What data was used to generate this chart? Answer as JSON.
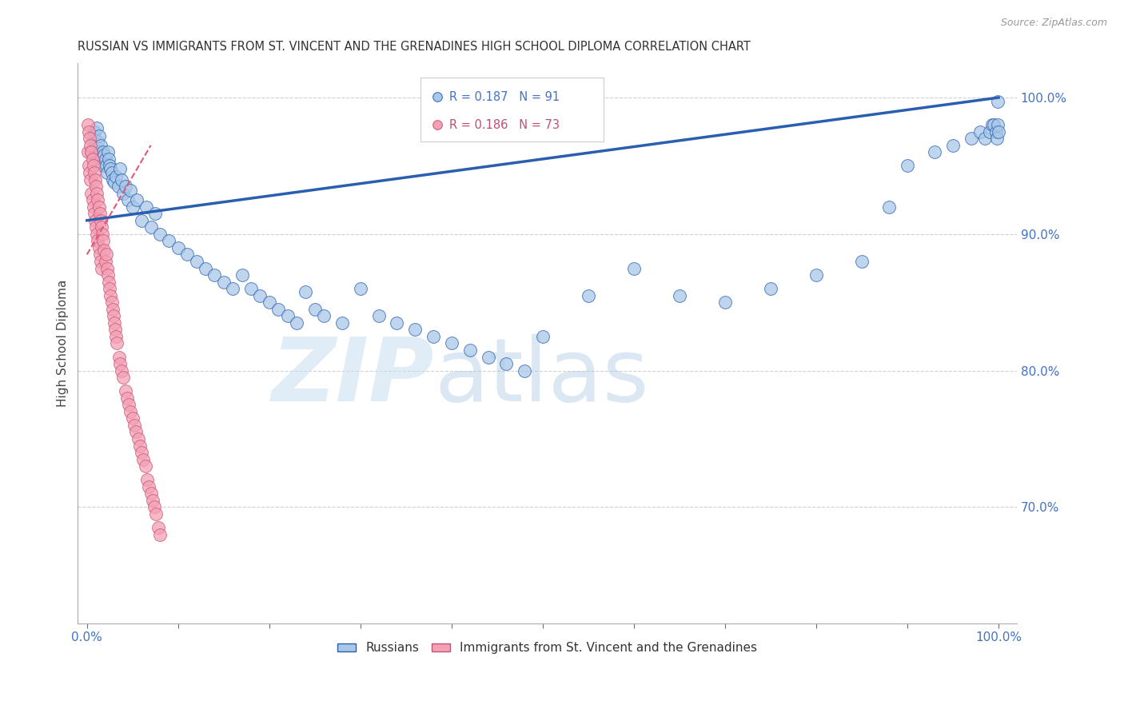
{
  "title": "RUSSIAN VS IMMIGRANTS FROM ST. VINCENT AND THE GRENADINES HIGH SCHOOL DIPLOMA CORRELATION CHART",
  "source": "Source: ZipAtlas.com",
  "ylabel": "High School Diploma",
  "right_ytick_labels": [
    "100.0%",
    "90.0%",
    "80.0%",
    "70.0%"
  ],
  "right_ytick_values": [
    1.0,
    0.9,
    0.8,
    0.7
  ],
  "xtick_edge_labels": [
    "0.0%",
    "100.0%"
  ],
  "xtick_edge_values": [
    0.0,
    1.0
  ],
  "xlim": [
    -0.01,
    1.02
  ],
  "ylim": [
    0.615,
    1.025
  ],
  "blue_color": "#a8c8e8",
  "pink_color": "#f4a0b5",
  "trend_blue_color": "#2a5fb0",
  "trend_pink_color": "#e05878",
  "legend_russians": "Russians",
  "legend_immigrants": "Immigrants from St. Vincent and the Grenadines",
  "blue_trend_x0": 0.0,
  "blue_trend_y0": 0.91,
  "blue_trend_x1": 1.0,
  "blue_trend_y1": 1.0,
  "pink_trend_x0": 0.0,
  "pink_trend_y0": 0.885,
  "pink_trend_x1": 0.07,
  "pink_trend_y1": 0.965,
  "blue_scatter_x": [
    0.005,
    0.007,
    0.008,
    0.009,
    0.01,
    0.011,
    0.012,
    0.013,
    0.014,
    0.015,
    0.016,
    0.017,
    0.018,
    0.019,
    0.02,
    0.021,
    0.022,
    0.023,
    0.024,
    0.025,
    0.026,
    0.027,
    0.028,
    0.03,
    0.032,
    0.034,
    0.036,
    0.038,
    0.04,
    0.042,
    0.045,
    0.048,
    0.05,
    0.055,
    0.06,
    0.065,
    0.07,
    0.075,
    0.08,
    0.09,
    0.1,
    0.11,
    0.12,
    0.13,
    0.14,
    0.15,
    0.16,
    0.17,
    0.18,
    0.19,
    0.2,
    0.21,
    0.22,
    0.23,
    0.24,
    0.25,
    0.26,
    0.28,
    0.3,
    0.32,
    0.34,
    0.36,
    0.38,
    0.4,
    0.42,
    0.44,
    0.46,
    0.48,
    0.5,
    0.55,
    0.6,
    0.65,
    0.7,
    0.75,
    0.8,
    0.85,
    0.88,
    0.9,
    0.93,
    0.95,
    0.97,
    0.98,
    0.985,
    0.99,
    0.993,
    0.995,
    0.997,
    0.998,
    0.999,
    1.0,
    0.999
  ],
  "blue_scatter_y": [
    0.96,
    0.97,
    0.975,
    0.965,
    0.958,
    0.978,
    0.968,
    0.972,
    0.96,
    0.965,
    0.955,
    0.95,
    0.96,
    0.958,
    0.955,
    0.95,
    0.945,
    0.96,
    0.955,
    0.95,
    0.948,
    0.945,
    0.94,
    0.938,
    0.942,
    0.935,
    0.948,
    0.94,
    0.93,
    0.935,
    0.925,
    0.932,
    0.92,
    0.925,
    0.91,
    0.92,
    0.905,
    0.915,
    0.9,
    0.895,
    0.89,
    0.885,
    0.88,
    0.875,
    0.87,
    0.865,
    0.86,
    0.87,
    0.86,
    0.855,
    0.85,
    0.845,
    0.84,
    0.835,
    0.858,
    0.845,
    0.84,
    0.835,
    0.86,
    0.84,
    0.835,
    0.83,
    0.825,
    0.82,
    0.815,
    0.81,
    0.805,
    0.8,
    0.825,
    0.855,
    0.875,
    0.855,
    0.85,
    0.86,
    0.87,
    0.88,
    0.92,
    0.95,
    0.96,
    0.965,
    0.97,
    0.975,
    0.97,
    0.975,
    0.98,
    0.98,
    0.975,
    0.97,
    0.98,
    0.975,
    0.997
  ],
  "pink_scatter_x": [
    0.001,
    0.001,
    0.002,
    0.002,
    0.003,
    0.003,
    0.004,
    0.004,
    0.005,
    0.005,
    0.006,
    0.006,
    0.007,
    0.007,
    0.008,
    0.008,
    0.009,
    0.009,
    0.01,
    0.01,
    0.011,
    0.011,
    0.012,
    0.012,
    0.013,
    0.013,
    0.014,
    0.014,
    0.015,
    0.015,
    0.016,
    0.016,
    0.017,
    0.018,
    0.019,
    0.02,
    0.021,
    0.022,
    0.023,
    0.024,
    0.025,
    0.026,
    0.027,
    0.028,
    0.029,
    0.03,
    0.031,
    0.032,
    0.033,
    0.035,
    0.036,
    0.038,
    0.04,
    0.042,
    0.044,
    0.046,
    0.048,
    0.05,
    0.052,
    0.054,
    0.056,
    0.058,
    0.06,
    0.062,
    0.064,
    0.066,
    0.068,
    0.07,
    0.072,
    0.074,
    0.076,
    0.078,
    0.08
  ],
  "pink_scatter_y": [
    0.98,
    0.96,
    0.975,
    0.95,
    0.97,
    0.945,
    0.965,
    0.94,
    0.96,
    0.93,
    0.955,
    0.925,
    0.95,
    0.92,
    0.945,
    0.915,
    0.94,
    0.91,
    0.935,
    0.905,
    0.93,
    0.9,
    0.925,
    0.895,
    0.92,
    0.89,
    0.915,
    0.885,
    0.91,
    0.88,
    0.905,
    0.875,
    0.9,
    0.895,
    0.888,
    0.88,
    0.885,
    0.875,
    0.87,
    0.865,
    0.86,
    0.855,
    0.85,
    0.845,
    0.84,
    0.835,
    0.83,
    0.825,
    0.82,
    0.81,
    0.805,
    0.8,
    0.795,
    0.785,
    0.78,
    0.775,
    0.77,
    0.765,
    0.76,
    0.755,
    0.75,
    0.745,
    0.74,
    0.735,
    0.73,
    0.72,
    0.715,
    0.71,
    0.705,
    0.7,
    0.695,
    0.685,
    0.68
  ]
}
